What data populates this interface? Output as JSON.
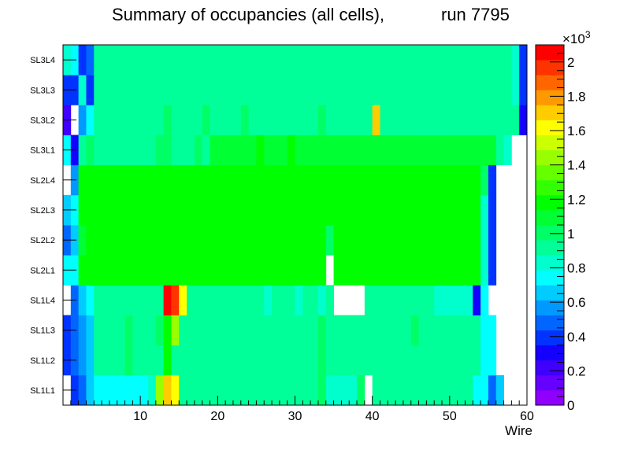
{
  "chart_data": {
    "type": "heatmap",
    "title_left": "Summary of occupancies (all cells),",
    "title_right": "run 7795",
    "xlabel": "Wire",
    "xlim": [
      0,
      60
    ],
    "x_ticks": [
      10,
      20,
      30,
      40,
      50,
      60
    ],
    "y_categories": [
      "SL1L1",
      "SL1L2",
      "SL1L3",
      "SL1L4",
      "SL2L1",
      "SL2L2",
      "SL2L3",
      "SL2L4",
      "SL3L1",
      "SL3L2",
      "SL3L3",
      "SL3L4"
    ],
    "colorbar": {
      "min": 0,
      "max": 2100,
      "multiplier_label": "×10",
      "multiplier_exp": "3",
      "ticks": [
        0,
        200,
        400,
        600,
        800,
        1000,
        1200,
        1400,
        1600,
        1800,
        2000
      ],
      "tick_labels": [
        "0",
        "0.2",
        "0.4",
        "0.6",
        "0.8",
        "1",
        "1.2",
        "1.4",
        "1.6",
        "1.8",
        "2"
      ],
      "palette": [
        "#8f00ff",
        "#6600ff",
        "#3f00ff",
        "#1400ff",
        "#0033ff",
        "#0066ff",
        "#0099ff",
        "#00ccff",
        "#00ffff",
        "#00ffcc",
        "#00ff99",
        "#00ff66",
        "#00ff33",
        "#00ff00",
        "#33ff00",
        "#66ff00",
        "#99ff00",
        "#ccff00",
        "#ffff00",
        "#ffcc00",
        "#ff9900",
        "#ff6600",
        "#ff3300",
        "#ff0000"
      ]
    },
    "rows": [
      {
        "label": "SL1L1",
        "values": [
          0,
          380,
          500,
          640,
          780,
          780,
          780,
          780,
          780,
          780,
          780,
          860,
          1460,
          1680,
          1650,
          900,
          920,
          920,
          920,
          920,
          920,
          920,
          920,
          920,
          920,
          920,
          920,
          920,
          920,
          920,
          920,
          920,
          920,
          1000,
          820,
          820,
          860,
          860,
          1000,
          0,
          920,
          920,
          920,
          920,
          920,
          920,
          920,
          920,
          920,
          920,
          920,
          920,
          920,
          700,
          700,
          500,
          640,
          0,
          0,
          0
        ]
      },
      {
        "label": "SL1L2",
        "values": [
          380,
          500,
          580,
          640,
          920,
          920,
          920,
          920,
          1000,
          920,
          920,
          920,
          920,
          1160,
          920,
          920,
          920,
          920,
          920,
          920,
          920,
          920,
          920,
          920,
          920,
          920,
          920,
          920,
          920,
          920,
          920,
          920,
          920,
          1000,
          920,
          920,
          920,
          920,
          920,
          920,
          920,
          920,
          920,
          920,
          920,
          920,
          920,
          920,
          920,
          920,
          920,
          920,
          920,
          920,
          700,
          700,
          0,
          0,
          0,
          0
        ]
      },
      {
        "label": "SL1L3",
        "values": [
          380,
          500,
          580,
          640,
          920,
          920,
          920,
          920,
          1000,
          920,
          920,
          920,
          1000,
          1200,
          1400,
          920,
          920,
          920,
          920,
          920,
          920,
          920,
          920,
          920,
          920,
          920,
          920,
          920,
          920,
          920,
          920,
          920,
          920,
          1000,
          920,
          920,
          920,
          920,
          920,
          920,
          920,
          920,
          920,
          920,
          920,
          1000,
          920,
          920,
          920,
          920,
          920,
          920,
          920,
          920,
          700,
          700,
          0,
          0,
          0,
          0
        ]
      },
      {
        "label": "SL1L4",
        "values": [
          0,
          500,
          640,
          700,
          900,
          920,
          900,
          900,
          900,
          900,
          900,
          900,
          900,
          2050,
          1950,
          1650,
          900,
          900,
          900,
          900,
          900,
          900,
          900,
          900,
          900,
          900,
          860,
          900,
          900,
          900,
          860,
          900,
          900,
          860,
          900,
          0,
          0,
          0,
          0,
          900,
          900,
          900,
          900,
          900,
          900,
          900,
          900,
          900,
          860,
          860,
          860,
          860,
          860,
          300,
          700,
          0,
          0,
          0,
          0,
          0
        ]
      },
      {
        "label": "SL2L1",
        "values": [
          700,
          700,
          1160,
          1160,
          1160,
          1160,
          1200,
          1160,
          1160,
          1200,
          1160,
          1160,
          1200,
          1200,
          1160,
          1160,
          1160,
          1160,
          1160,
          1160,
          1160,
          1160,
          1160,
          1160,
          1160,
          1200,
          1160,
          1160,
          1160,
          1160,
          1160,
          1160,
          1160,
          1160,
          0,
          1160,
          1160,
          1160,
          1160,
          1160,
          1160,
          1160,
          1160,
          1160,
          1160,
          1160,
          1160,
          1160,
          1160,
          1160,
          1160,
          1160,
          1160,
          1160,
          860,
          400,
          0,
          0,
          0,
          0
        ]
      },
      {
        "label": "SL2L2",
        "values": [
          460,
          640,
          1060,
          1160,
          1160,
          1160,
          1200,
          1160,
          1160,
          1200,
          1160,
          1160,
          1200,
          1200,
          1160,
          1160,
          1160,
          1160,
          1160,
          1160,
          1160,
          1160,
          1160,
          1160,
          1160,
          1160,
          1160,
          1160,
          1200,
          1160,
          1160,
          1160,
          1160,
          1160,
          1040,
          1160,
          1160,
          1160,
          1160,
          1160,
          1160,
          1160,
          1160,
          1160,
          1160,
          1160,
          1160,
          1160,
          1160,
          1160,
          1160,
          1160,
          1160,
          1160,
          800,
          400,
          0,
          0,
          0,
          0
        ]
      },
      {
        "label": "SL2L3",
        "values": [
          660,
          740,
          1160,
          1160,
          1160,
          1160,
          1200,
          1160,
          1160,
          1200,
          1160,
          1160,
          1200,
          1200,
          1160,
          1160,
          1160,
          1160,
          1160,
          1160,
          1160,
          1160,
          1160,
          1160,
          1160,
          1200,
          1160,
          1160,
          1160,
          1160,
          1160,
          1160,
          1160,
          1160,
          1160,
          1160,
          1160,
          1160,
          1160,
          1160,
          1160,
          1160,
          1160,
          1160,
          1160,
          1160,
          1160,
          1160,
          1160,
          1160,
          1160,
          1160,
          1160,
          1160,
          800,
          400,
          0,
          0,
          0,
          0
        ]
      },
      {
        "label": "SL2L4",
        "values": [
          0,
          600,
          1160,
          1160,
          1160,
          1160,
          1200,
          1160,
          1160,
          1200,
          1160,
          1160,
          1200,
          1200,
          1160,
          1160,
          1160,
          1160,
          1160,
          1160,
          1160,
          1160,
          1160,
          1160,
          1160,
          1200,
          1160,
          1160,
          1160,
          1160,
          1160,
          1160,
          1160,
          1160,
          1160,
          1160,
          1160,
          1160,
          1160,
          1160,
          1160,
          1160,
          1160,
          1160,
          1160,
          1160,
          1160,
          1160,
          1160,
          1160,
          1160,
          1160,
          1160,
          1160,
          1000,
          400,
          0,
          0,
          0,
          0
        ]
      },
      {
        "label": "SL3L1",
        "values": [
          720,
          280,
          880,
          1000,
          920,
          920,
          920,
          920,
          920,
          920,
          920,
          920,
          1000,
          1000,
          920,
          920,
          920,
          1000,
          920,
          1060,
          1060,
          1060,
          1060,
          1060,
          1060,
          1160,
          1060,
          1060,
          1060,
          1160,
          1060,
          1060,
          1060,
          1060,
          1060,
          1060,
          1060,
          1060,
          1060,
          1060,
          1060,
          1060,
          1060,
          1060,
          1060,
          1060,
          1060,
          1060,
          1060,
          1060,
          1060,
          1060,
          1060,
          1060,
          1060,
          1060,
          940,
          800,
          0,
          0
        ]
      },
      {
        "label": "SL3L2",
        "values": [
          240,
          0,
          580,
          700,
          920,
          920,
          920,
          920,
          920,
          920,
          920,
          920,
          920,
          1000,
          920,
          920,
          920,
          920,
          1000,
          920,
          920,
          920,
          920,
          1000,
          920,
          920,
          920,
          920,
          920,
          920,
          920,
          920,
          920,
          1000,
          920,
          920,
          920,
          920,
          920,
          920,
          1700,
          920,
          920,
          920,
          920,
          920,
          920,
          920,
          920,
          920,
          920,
          920,
          920,
          920,
          920,
          920,
          920,
          920,
          900,
          300
        ]
      },
      {
        "label": "SL3L3",
        "values": [
          380,
          380,
          800,
          380,
          920,
          920,
          920,
          920,
          920,
          920,
          920,
          920,
          920,
          920,
          920,
          920,
          920,
          920,
          920,
          920,
          920,
          920,
          920,
          920,
          920,
          920,
          920,
          920,
          920,
          920,
          920,
          920,
          920,
          920,
          920,
          920,
          920,
          920,
          920,
          920,
          920,
          920,
          920,
          920,
          920,
          920,
          920,
          920,
          920,
          920,
          920,
          920,
          920,
          920,
          920,
          920,
          920,
          920,
          860,
          380
        ]
      },
      {
        "label": "SL3L4",
        "values": [
          820,
          700,
          380,
          500,
          900,
          900,
          960,
          960,
          960,
          960,
          960,
          960,
          960,
          960,
          960,
          960,
          960,
          960,
          960,
          960,
          960,
          960,
          960,
          960,
          960,
          960,
          960,
          960,
          960,
          960,
          960,
          960,
          960,
          960,
          960,
          960,
          960,
          960,
          960,
          960,
          960,
          960,
          960,
          960,
          960,
          960,
          960,
          960,
          960,
          960,
          960,
          960,
          960,
          960,
          960,
          960,
          960,
          960,
          820,
          380
        ]
      }
    ]
  }
}
